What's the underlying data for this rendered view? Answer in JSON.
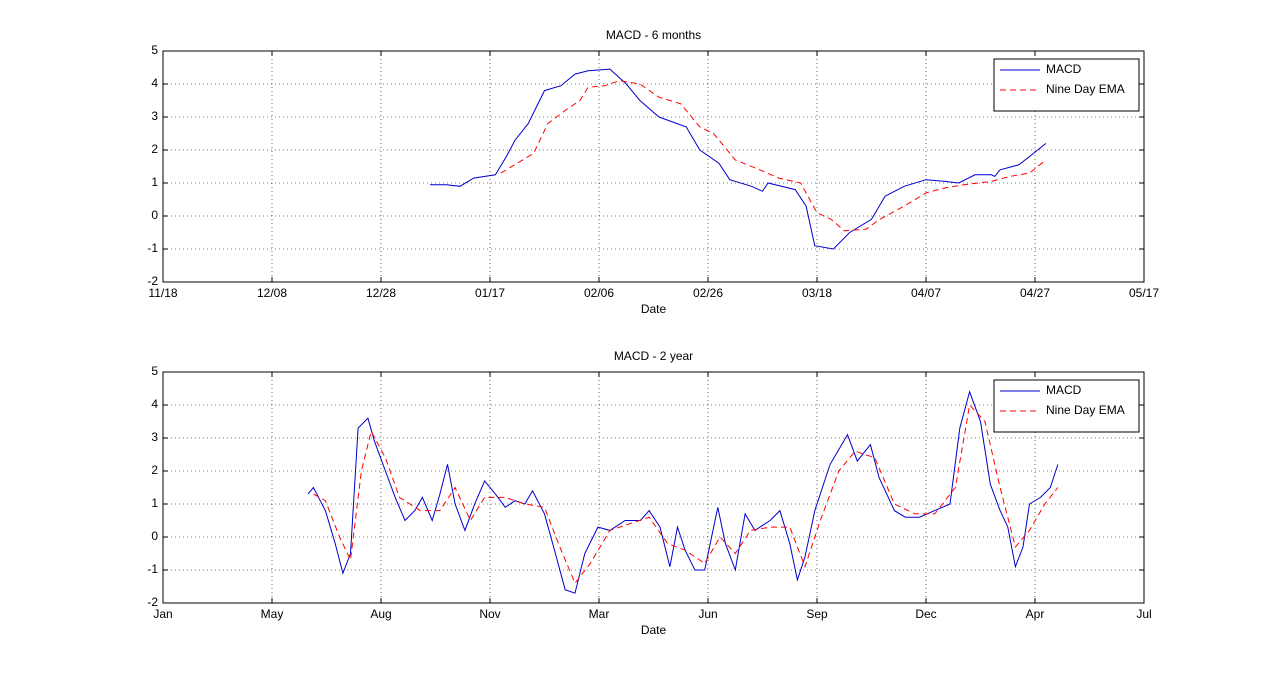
{
  "chart_data": [
    {
      "type": "line",
      "title": "MACD - 6 months",
      "xlabel": "Date",
      "xlim": [
        0,
        180
      ],
      "xticks": [
        {
          "value": 0,
          "label": "11/18"
        },
        {
          "value": 20,
          "label": "12/08"
        },
        {
          "value": 40,
          "label": "12/28"
        },
        {
          "value": 60,
          "label": "01/17"
        },
        {
          "value": 80,
          "label": "02/06"
        },
        {
          "value": 100,
          "label": "02/26"
        },
        {
          "value": 120,
          "label": "03/18"
        },
        {
          "value": 140,
          "label": "04/07"
        },
        {
          "value": 160,
          "label": "04/27"
        },
        {
          "value": 180,
          "label": "05/17"
        }
      ],
      "ylim": [
        -2,
        5
      ],
      "yticks": [
        -2,
        -1,
        0,
        1,
        2,
        3,
        4,
        5
      ],
      "grid": true,
      "legend": "northeast",
      "series": [
        {
          "name": "MACD",
          "color": "#0000cc",
          "line_style": "solid",
          "x": [
            49,
            52,
            54.5,
            57,
            61,
            63,
            64.6,
            67,
            70,
            73,
            75.6,
            78,
            82,
            85,
            87.5,
            91,
            96,
            98.5,
            102,
            104,
            108,
            110,
            111,
            116,
            118,
            119.6,
            123,
            126,
            130,
            132.5,
            136,
            140,
            143.5,
            146,
            149,
            152,
            152.6,
            153.6,
            157,
            159,
            162
          ],
          "values": [
            0.95,
            0.95,
            0.9,
            1.15,
            1.25,
            1.8,
            2.3,
            2.8,
            3.8,
            3.95,
            4.3,
            4.4,
            4.45,
            4.0,
            3.5,
            3.0,
            2.7,
            2.0,
            1.6,
            1.1,
            0.9,
            0.75,
            1.0,
            0.8,
            0.3,
            -0.9,
            -1.0,
            -0.5,
            -0.1,
            0.6,
            0.9,
            1.1,
            1.05,
            1.0,
            1.25,
            1.25,
            1.2,
            1.4,
            1.55,
            1.8,
            2.2
          ]
        },
        {
          "name": "Nine Day EMA",
          "color": "#ff0000",
          "line_style": "dashed",
          "x": [
            62,
            65.5,
            68,
            70.6,
            73.8,
            76.5,
            78,
            81,
            83.8,
            87.5,
            91,
            95,
            98.5,
            101,
            105,
            109.5,
            113,
            117,
            120,
            122.6,
            125,
            129,
            131.5,
            136,
            140,
            143.5,
            147,
            152,
            155.4,
            159,
            162
          ],
          "values": [
            1.3,
            1.65,
            1.9,
            2.8,
            3.2,
            3.5,
            3.9,
            3.95,
            4.1,
            4.0,
            3.6,
            3.4,
            2.7,
            2.5,
            1.7,
            1.4,
            1.15,
            1.0,
            0.1,
            -0.1,
            -0.45,
            -0.4,
            -0.1,
            0.3,
            0.7,
            0.85,
            0.95,
            1.05,
            1.2,
            1.3,
            1.7
          ]
        }
      ]
    },
    {
      "type": "line",
      "title": "MACD - 2 year",
      "xlabel": "Date",
      "xlim": [
        0,
        900
      ],
      "xticks": [
        {
          "value": 0,
          "label": "Jan"
        },
        {
          "value": 100,
          "label": "May"
        },
        {
          "value": 200,
          "label": "Aug"
        },
        {
          "value": 300,
          "label": "Nov"
        },
        {
          "value": 400,
          "label": "Mar"
        },
        {
          "value": 500,
          "label": "Jun"
        },
        {
          "value": 600,
          "label": "Sep"
        },
        {
          "value": 700,
          "label": "Dec"
        },
        {
          "value": 800,
          "label": "Apr"
        },
        {
          "value": 900,
          "label": "Jul"
        }
      ],
      "ylim": [
        -2,
        5
      ],
      "yticks": [
        -2,
        -1,
        0,
        1,
        2,
        3,
        4,
        5
      ],
      "grid": true,
      "legend": "northeast",
      "series": [
        {
          "name": "MACD",
          "color": "#0000cc",
          "line_style": "solid",
          "x": [
            133,
            138,
            149,
            158,
            165,
            172,
            179,
            188,
            194,
            204,
            213,
            222,
            231,
            238,
            247,
            254,
            261,
            268,
            277,
            286,
            295,
            305,
            314,
            323,
            332,
            339,
            350,
            360,
            369,
            378,
            387,
            399,
            410,
            424,
            438,
            446,
            456,
            465,
            472,
            479,
            488,
            497,
            509,
            516,
            525,
            534,
            543,
            557,
            566,
            575,
            582,
            589,
            598,
            612,
            628,
            637,
            649,
            657,
            671,
            681,
            694,
            708,
            722,
            731,
            740,
            750,
            759,
            768,
            775,
            782,
            789,
            795,
            805,
            814,
            821
          ],
          "values": [
            1.3,
            1.5,
            0.8,
            -0.2,
            -1.1,
            -0.5,
            3.3,
            3.6,
            2.9,
            2.0,
            1.2,
            0.5,
            0.8,
            1.2,
            0.5,
            1.3,
            2.2,
            1.0,
            0.2,
            1.0,
            1.7,
            1.3,
            0.9,
            1.1,
            1.0,
            1.4,
            0.7,
            -0.5,
            -1.6,
            -1.7,
            -0.5,
            0.3,
            0.2,
            0.5,
            0.5,
            0.8,
            0.3,
            -0.9,
            0.3,
            -0.4,
            -1.0,
            -1.0,
            0.9,
            -0.2,
            -1.0,
            0.7,
            0.2,
            0.5,
            0.8,
            -0.2,
            -1.3,
            -0.6,
            0.8,
            2.2,
            3.1,
            2.3,
            2.8,
            1.8,
            0.8,
            0.6,
            0.6,
            0.8,
            1.0,
            3.3,
            4.4,
            3.5,
            1.6,
            0.8,
            0.3,
            -0.9,
            -0.3,
            1.0,
            1.2,
            1.5,
            2.2
          ]
        },
        {
          "name": "Nine Day EMA",
          "color": "#ff0000",
          "line_style": "dashed",
          "x": [
            138,
            149,
            162,
            172,
            182,
            191,
            204,
            217,
            236,
            254,
            268,
            282,
            295,
            314,
            332,
            350,
            364,
            378,
            392,
            410,
            428,
            446,
            463,
            479,
            497,
            511,
            525,
            539,
            557,
            575,
            589,
            603,
            620,
            635,
            653,
            671,
            690,
            708,
            727,
            740,
            754,
            768,
            782,
            795,
            809,
            821
          ],
          "values": [
            1.3,
            1.1,
            0.0,
            -0.7,
            2.0,
            3.2,
            2.4,
            1.2,
            0.8,
            0.8,
            1.5,
            0.5,
            1.2,
            1.2,
            1.0,
            0.9,
            -0.3,
            -1.4,
            -0.8,
            0.2,
            0.4,
            0.6,
            -0.2,
            -0.4,
            -0.8,
            0.0,
            -0.5,
            0.2,
            0.3,
            0.3,
            -0.9,
            0.5,
            2.0,
            2.6,
            2.4,
            1.0,
            0.7,
            0.7,
            1.5,
            4.0,
            3.5,
            1.5,
            -0.3,
            0.2,
            1.0,
            1.5
          ]
        }
      ]
    }
  ]
}
